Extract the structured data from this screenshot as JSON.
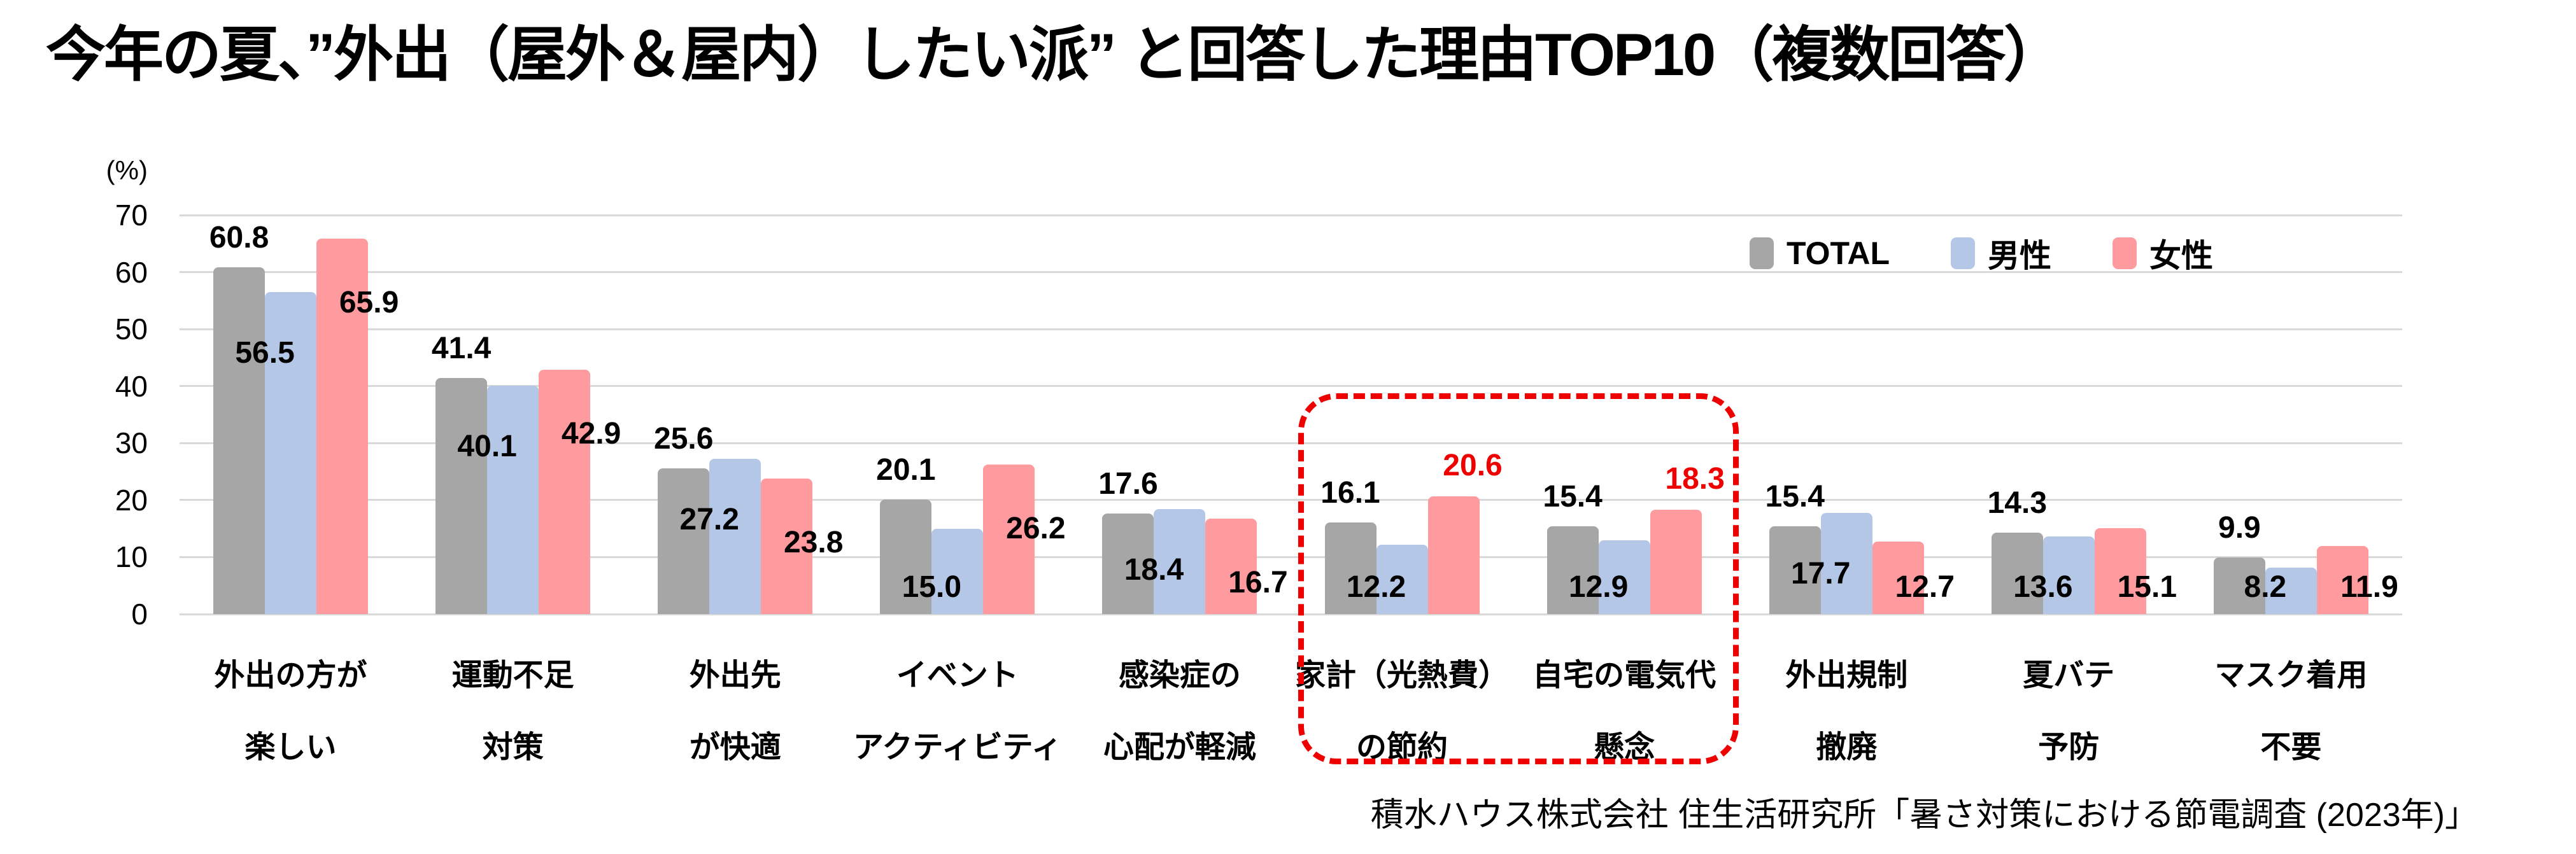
{
  "title": "今年の夏、”外出（屋外＆屋内）したい派” と回答した理由TOP10（複数回答）",
  "source": "積水ハウス株式会社 住生活研究所「暑さ対策における節電調査 (2023年)」",
  "chart_data": {
    "type": "bar",
    "unit_label": "(%)",
    "ylim": [
      0,
      70
    ],
    "ytick_step": 10,
    "grid": true,
    "grid_color": "#d9d9d9",
    "legend_position": "top-right",
    "categories": [
      [
        "外出の方が",
        "楽しい"
      ],
      [
        "運動不足",
        "対策"
      ],
      [
        "外出先",
        "が快適"
      ],
      [
        "イベント",
        "アクティビティ"
      ],
      [
        "感染症の",
        "心配が軽減"
      ],
      [
        "家計（光熱費）",
        "の節約"
      ],
      [
        "自宅の電気代",
        "懸念"
      ],
      [
        "外出規制",
        "撤廃"
      ],
      [
        "夏バテ",
        "予防"
      ],
      [
        "マスク着用",
        "不要"
      ]
    ],
    "series": [
      {
        "name": "TOTAL",
        "color": "#a6a6a6",
        "values": [
          60.8,
          41.4,
          25.6,
          20.1,
          17.6,
          16.1,
          15.4,
          15.4,
          14.3,
          9.9
        ]
      },
      {
        "name": "男性",
        "color": "#b4c7e7",
        "values": [
          56.5,
          40.1,
          27.2,
          15.0,
          18.4,
          12.2,
          12.9,
          17.7,
          13.6,
          8.2
        ]
      },
      {
        "name": "女性",
        "color": "#ff9a9e",
        "values": [
          65.9,
          42.9,
          23.8,
          26.2,
          16.7,
          20.6,
          18.3,
          12.7,
          15.1,
          11.9
        ]
      }
    ],
    "highlight": {
      "category_indexes": [
        5,
        6
      ],
      "box_color": "#ee0000",
      "label_color": "#ee0000",
      "red_labeled_series": "女性",
      "red_labeled_values": [
        20.6,
        18.3
      ]
    }
  }
}
